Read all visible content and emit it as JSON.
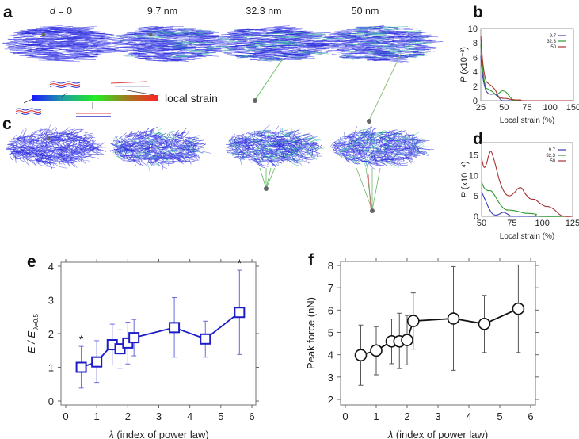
{
  "panels": {
    "a": {
      "letter": "a",
      "distance_labels": [
        {
          "var": "d",
          "text": " = 0"
        },
        {
          "var": "",
          "text": "9.7 nm"
        },
        {
          "var": "",
          "text": "32.3 nm"
        },
        {
          "var": "",
          "text": "50 nm"
        }
      ],
      "colorbar_label": "local strain",
      "colorbar_colors": [
        "#1a1aff",
        "#1fa0a0",
        "#22ee22",
        "#a07a20",
        "#ff2222"
      ]
    },
    "b": {
      "letter": "b"
    },
    "c": {
      "letter": "c"
    },
    "d": {
      "letter": "d"
    },
    "e": {
      "letter": "e"
    },
    "f": {
      "letter": "f"
    }
  },
  "series_colors": {
    "9.7": "#3a3ab0",
    "32.3": "#2e9a2e",
    "50": "#a83232"
  },
  "chart_data": [
    {
      "id": "b",
      "type": "line",
      "xlabel": "Local strain (%)",
      "ylabel": "P (x10⁻³)",
      "ylabel_var": "P",
      "ylabel_unit": " (x10⁻³)",
      "xticks": [
        "25",
        "50",
        "75",
        "100",
        "150"
      ],
      "xlim": [
        25,
        150
      ],
      "yticks": [
        "0",
        "2",
        "4",
        "6",
        "8",
        "10"
      ],
      "ylim": [
        0,
        10
      ],
      "legend": [
        "9.7",
        "32.3",
        "50"
      ],
      "legend_position": "top-right",
      "series": [
        {
          "name": "9.7",
          "x": [
            25,
            27,
            30,
            33,
            36,
            40,
            44,
            48,
            55,
            150
          ],
          "y": [
            6.2,
            3.5,
            1.6,
            1.0,
            0.9,
            0.9,
            0.5,
            0.0,
            0.0,
            0.0
          ]
        },
        {
          "name": "32.3",
          "x": [
            25,
            27,
            30,
            33,
            37,
            41,
            44,
            48,
            52,
            56,
            60,
            65,
            150
          ],
          "y": [
            7.8,
            4.5,
            2.0,
            1.6,
            1.3,
            0.9,
            1.0,
            1.35,
            1.2,
            0.6,
            0.1,
            0.0,
            0.0
          ]
        },
        {
          "name": "50",
          "x": [
            25,
            27,
            30,
            33,
            37,
            41,
            44,
            48,
            53,
            58,
            63,
            68,
            72,
            150
          ],
          "y": [
            9.0,
            5.5,
            3.0,
            2.4,
            2.0,
            1.4,
            0.6,
            0.35,
            0.3,
            0.15,
            0.1,
            0.1,
            0.0,
            0.0
          ]
        }
      ]
    },
    {
      "id": "d",
      "type": "line",
      "xlabel": "Local strain (%)",
      "ylabel_var": "P",
      "ylabel_unit": " (x10⁻⁴)",
      "xticks": [
        "50",
        "75",
        "100",
        "125"
      ],
      "xlim": [
        50,
        125
      ],
      "yticks": [
        "0",
        "5",
        "10",
        "15"
      ],
      "ylim": [
        0,
        18
      ],
      "legend": [
        "9.7",
        "32.3",
        "50"
      ],
      "legend_position": "top-right",
      "series": [
        {
          "name": "9.7",
          "x": [
            50,
            53,
            56,
            59,
            62,
            65,
            68,
            71,
            74,
            76,
            125
          ],
          "y": [
            6.0,
            4.0,
            2.0,
            0.6,
            0.3,
            0.6,
            1.0,
            0.6,
            0.1,
            0.0,
            0.0
          ]
        },
        {
          "name": "32.3",
          "x": [
            50,
            52,
            55,
            58,
            61,
            64,
            67,
            70,
            75,
            80,
            85,
            90,
            95,
            97,
            125
          ],
          "y": [
            8.5,
            7.0,
            6.3,
            6.2,
            5.0,
            3.5,
            2.3,
            1.6,
            1.5,
            1.2,
            0.8,
            0.7,
            0.5,
            0.0,
            0.0
          ]
        },
        {
          "name": "50",
          "x": [
            50,
            52,
            54,
            56,
            58,
            61,
            65,
            69,
            73,
            77,
            80,
            83,
            86,
            90,
            94,
            98,
            102,
            106,
            110,
            114,
            118,
            125
          ],
          "y": [
            14.2,
            12.0,
            12.8,
            15.0,
            15.8,
            13.0,
            8.5,
            5.8,
            5.0,
            5.8,
            6.8,
            6.9,
            5.5,
            4.3,
            4.1,
            3.2,
            2.5,
            2.3,
            1.6,
            0.5,
            0.0,
            0.0
          ]
        }
      ]
    },
    {
      "id": "e",
      "type": "line",
      "xlabel_var": "λ",
      "xlabel": " (index of power law)",
      "ylabel_var": "E / E",
      "ylabel_sub": "λ=0.5",
      "xticks": [
        "0",
        "1",
        "2",
        "3",
        "4",
        "5",
        "6"
      ],
      "xlim": [
        0,
        6
      ],
      "yticks": [
        "0",
        "1",
        "2",
        "3",
        "4"
      ],
      "ylim": [
        0,
        4
      ],
      "color": "#1c1cc8",
      "errorbar_color": "#6a6ae0",
      "marker": "square",
      "x": [
        0.5,
        1.0,
        1.5,
        1.75,
        2.0,
        2.2,
        3.5,
        4.5,
        5.6
      ],
      "y": [
        1.0,
        1.16,
        1.67,
        1.55,
        1.72,
        1.88,
        2.18,
        1.84,
        2.63
      ],
      "err_low": [
        0.38,
        0.55,
        1.07,
        0.97,
        1.1,
        1.34,
        1.3,
        1.3,
        1.38
      ],
      "err_high": [
        1.62,
        1.79,
        2.28,
        2.11,
        2.34,
        2.42,
        3.07,
        2.37,
        3.88
      ],
      "annotations": [
        {
          "x": 0.5,
          "y": 1.62,
          "text": "*"
        },
        {
          "x": 5.6,
          "y": 3.88,
          "text": "*"
        }
      ]
    },
    {
      "id": "f",
      "type": "line",
      "xlabel_var": "λ",
      "xlabel": " (index of power law)",
      "ylabel": "Peak force (nN)",
      "xticks": [
        "0",
        "1",
        "2",
        "3",
        "4",
        "5",
        "6"
      ],
      "xlim": [
        0,
        6
      ],
      "yticks": [
        "2",
        "3",
        "4",
        "5",
        "6",
        "7",
        "8"
      ],
      "ylim": [
        2,
        8
      ],
      "color": "#111111",
      "errorbar_color": "#555555",
      "marker": "circle",
      "x": [
        0.5,
        1.0,
        1.5,
        1.75,
        2.0,
        2.2,
        3.5,
        4.5,
        5.6
      ],
      "y": [
        3.98,
        4.19,
        4.6,
        4.6,
        4.66,
        5.51,
        5.62,
        5.38,
        6.06
      ],
      "err_low": [
        2.63,
        3.1,
        3.6,
        3.38,
        3.55,
        4.25,
        3.3,
        4.1,
        4.1
      ],
      "err_high": [
        5.33,
        5.26,
        5.6,
        5.86,
        5.76,
        6.77,
        7.95,
        6.66,
        8.02
      ]
    }
  ]
}
